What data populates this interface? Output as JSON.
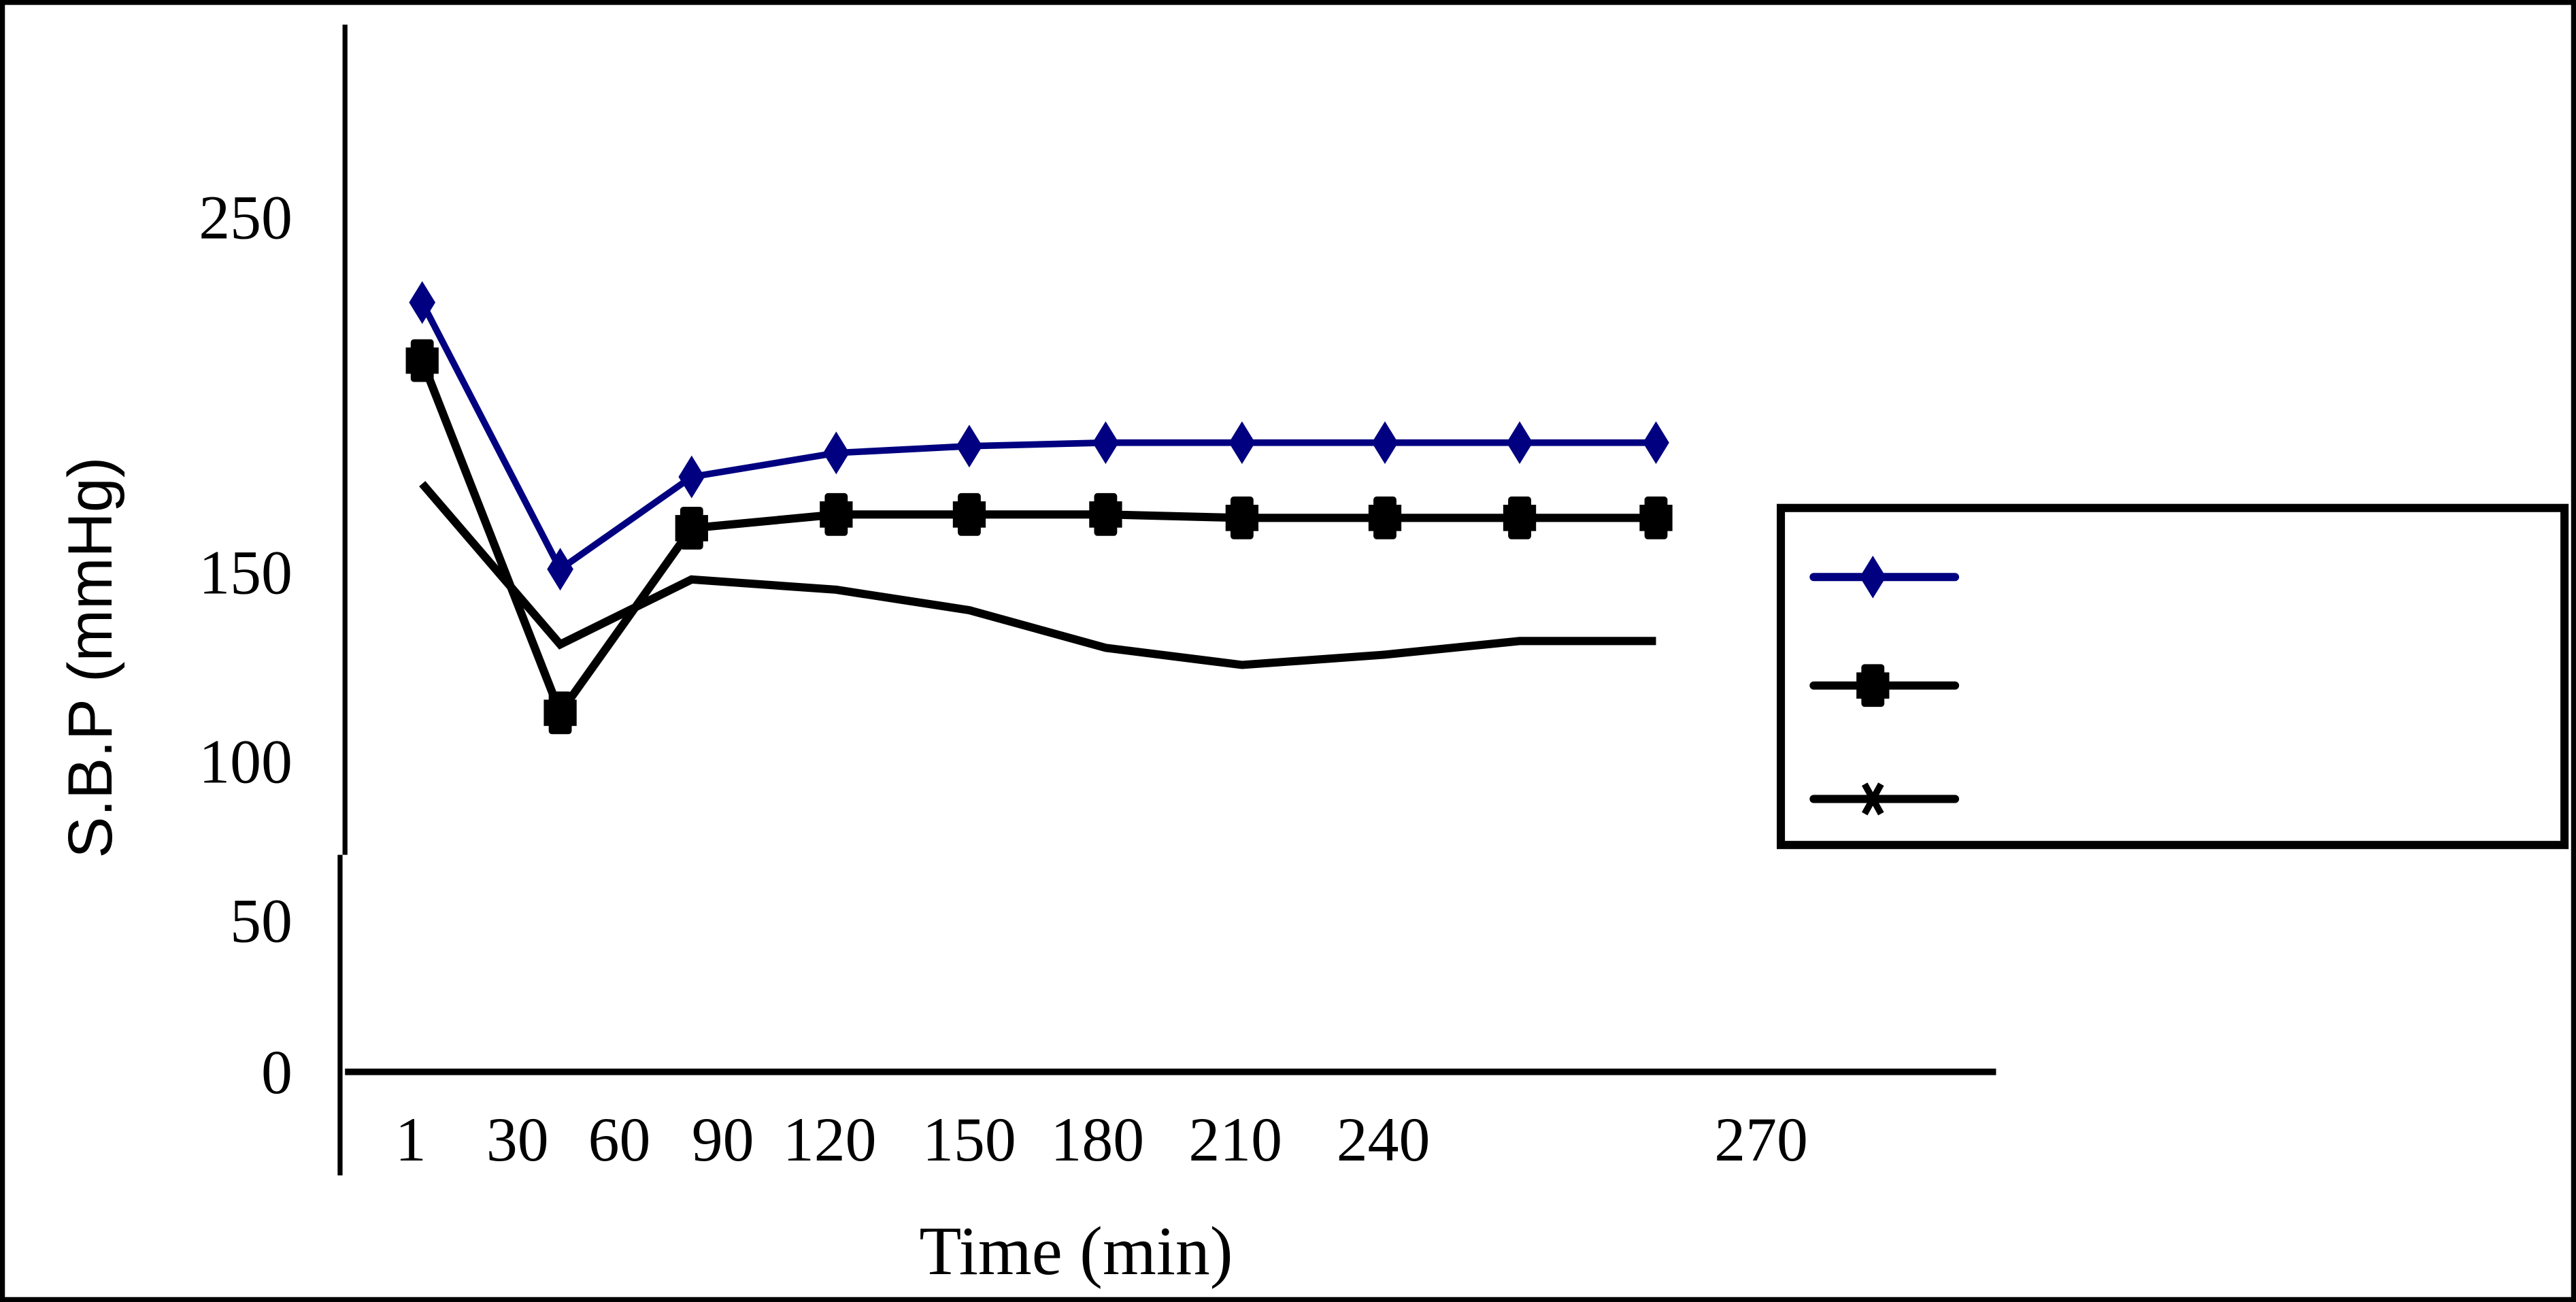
{
  "chart_data": {
    "type": "line",
    "title": "",
    "xlabel": "Time (min)",
    "ylabel": "S.B.P (mmHg)",
    "x_tick_labels": [
      "1",
      "30",
      "60",
      "90",
      "120",
      "150",
      "180",
      "210",
      "240",
      "270"
    ],
    "y_tick_labels": [
      "0",
      "50",
      "100",
      "150",
      "250"
    ],
    "y_tick_values": [
      0,
      50,
      100,
      150,
      250
    ],
    "ylim": [
      0,
      300
    ],
    "grid": false,
    "legend": {
      "placement": "right",
      "entries": [
        {
          "marker": "diamond",
          "color": "#000080"
        },
        {
          "marker": "square",
          "color": "#000000"
        },
        {
          "marker": "x",
          "color": "#000000"
        }
      ]
    },
    "series": [
      {
        "marker": "diamond",
        "color": "#000080",
        "values": [
          225,
          147,
          174,
          181,
          183,
          184,
          184,
          184,
          184,
          184
        ]
      },
      {
        "marker": "square",
        "color": "#000000",
        "values": [
          208,
          105,
          159,
          163,
          163,
          163,
          162,
          162,
          162,
          162
        ]
      },
      {
        "marker": "none",
        "color": "#000000",
        "values": [
          172,
          125,
          144,
          141,
          135,
          124,
          119,
          122,
          126,
          126
        ]
      }
    ]
  }
}
